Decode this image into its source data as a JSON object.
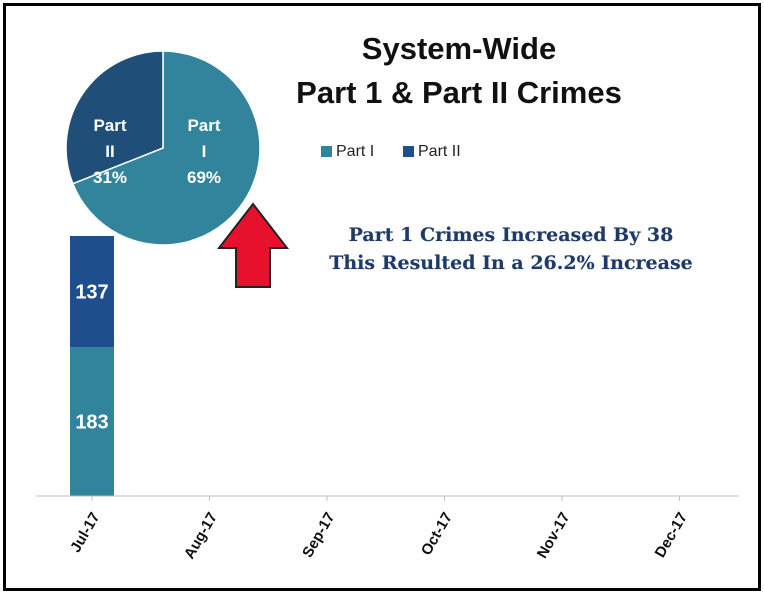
{
  "chart_data": {
    "type": "bar",
    "title_line1": "System-Wide",
    "title_line2": "Part 1 & Part II Crimes",
    "categories": [
      "Jul-17",
      "Aug-17",
      "Sep-17",
      "Oct-17",
      "Nov-17",
      "Dec-17"
    ],
    "series": [
      {
        "name": "Part I",
        "values": [
          183,
          null,
          null,
          null,
          null,
          null
        ],
        "color": "#31849b"
      },
      {
        "name": "Part II",
        "values": [
          137,
          null,
          null,
          null,
          null,
          null
        ],
        "color": "#1f4e8c"
      }
    ],
    "stacked": true,
    "legend_position": "top-center",
    "grid": false,
    "pie": {
      "slices": [
        {
          "label_line1": "Part",
          "label_line2": "I",
          "percent_label": "69%",
          "value": 69,
          "color": "#31849b"
        },
        {
          "label_line1": "Part",
          "label_line2": "II",
          "percent_label": "31%",
          "value": 31,
          "color": "#1f4e79"
        }
      ]
    },
    "annotation_line1": "Part 1 Crimes Increased By 38",
    "annotation_line2": "This Resulted In a 26.2% Increase",
    "annotation_arrow_color": "#e8112d"
  }
}
